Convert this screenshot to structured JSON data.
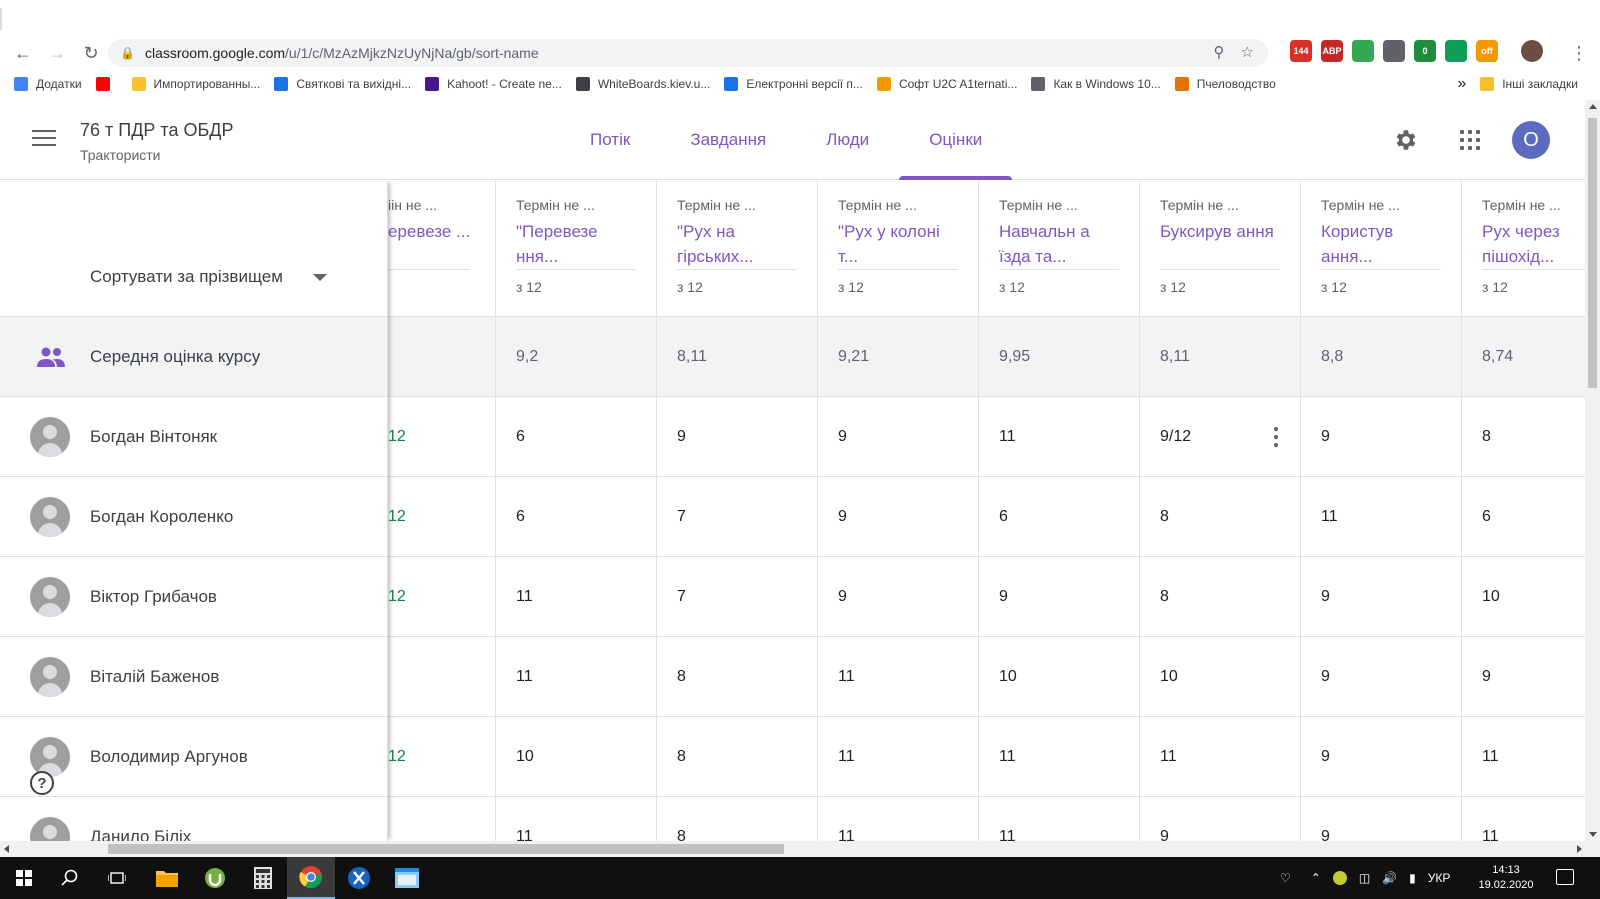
{
  "browser": {
    "url_host": "classroom.google.com",
    "url_path": "/u/1/c/MzAzMjkzNzUyNjNa/gb/sort-name",
    "extensions": [
      {
        "name": "calendar-ext-icon",
        "badge": "144",
        "color": "#d93025"
      },
      {
        "name": "adblock-icon",
        "badge": "ABP",
        "color": "#c62828"
      },
      {
        "name": "home-ext-icon",
        "badge": "",
        "color": "#34a853"
      },
      {
        "name": "window-ext-icon",
        "badge": "",
        "color": "#5f6368"
      },
      {
        "name": "shield-ext-icon",
        "badge": "0",
        "color": "#1e8e3e"
      },
      {
        "name": "display-ext-icon",
        "badge": "",
        "color": "#0f9d58"
      },
      {
        "name": "off-ext-icon",
        "badge": "off",
        "color": "#f29900"
      },
      {
        "name": "profile-avatar-icon",
        "badge": "",
        "color": "#6d4c41"
      }
    ],
    "bookmarks": [
      {
        "label": "Додатки",
        "icon": "apps-grid-icon",
        "color": "#4285f4"
      },
      {
        "label": "",
        "icon": "youtube-icon",
        "color": "#ff0000"
      },
      {
        "label": "Импортированны...",
        "icon": "folder-icon",
        "color": "#fbc02d"
      },
      {
        "label": "Святкові та вихідні...",
        "icon": "circle-icon",
        "color": "#1a73e8"
      },
      {
        "label": "Kahoot! - Create ne...",
        "icon": "kahoot-icon",
        "color": "#46178f"
      },
      {
        "label": "WhiteBoards.kiev.u...",
        "icon": "globe-icon",
        "color": "#3c4043"
      },
      {
        "label": "Електронні версії п...",
        "icon": "book-icon",
        "color": "#1a73e8"
      },
      {
        "label": "Софт U2C A1ternati...",
        "icon": "soft-icon",
        "color": "#f29900"
      },
      {
        "label": "Как в Windows 10...",
        "icon": "bird-icon",
        "color": "#5f6368"
      },
      {
        "label": "Пчеловодство",
        "icon": "bee-icon",
        "color": "#e37400"
      }
    ],
    "bookmarks_more": "»",
    "bookmarks_other": "Інші закладки"
  },
  "header": {
    "title": "76 т ПДР та ОБДР",
    "subtitle": "Трактористи",
    "tabs": [
      "Потік",
      "Завдання",
      "Люди",
      "Оцінки"
    ],
    "active_tab": "Оцінки",
    "account_initial": "О",
    "accent": "#7e57c2"
  },
  "gradebook": {
    "sort_label": "Сортувати за прізвищем",
    "average_label": "Середня оцінка курсу",
    "assignments": [
      {
        "due": "іін не ...",
        "title": "еревезе ...",
        "max": ""
      },
      {
        "due": "Термін не ...",
        "title": "\"Перевезе ння...",
        "max": "з 12"
      },
      {
        "due": "Термін не ...",
        "title": "\"Рух на гірських...",
        "max": "з 12"
      },
      {
        "due": "Термін не ...",
        "title": "\"Рух у колоні т...",
        "max": "з 12"
      },
      {
        "due": "Термін не ...",
        "title": "Навчальн а їзда та...",
        "max": "з 12"
      },
      {
        "due": "Термін не ...",
        "title": "Буксирув ання",
        "max": "з 12"
      },
      {
        "due": "Термін не ...",
        "title": "Користув ання...",
        "max": "з 12"
      },
      {
        "due": "Термін не ...",
        "title": "Рух через пішохід...",
        "max": "з 12"
      }
    ],
    "averages": [
      "",
      "9,2",
      "8,11",
      "9,21",
      "9,95",
      "8,11",
      "8,8",
      "8,74"
    ],
    "students": [
      {
        "name": "Богдан Вінтоняк",
        "grades": [
          "12",
          "6",
          "9",
          "9",
          "11",
          "9/12",
          "9",
          "8"
        ]
      },
      {
        "name": "Богдан Короленко",
        "grades": [
          "12",
          "6",
          "7",
          "9",
          "6",
          "8",
          "11",
          "6"
        ]
      },
      {
        "name": "Віктор Грибачов",
        "grades": [
          "12",
          "11",
          "7",
          "9",
          "9",
          "8",
          "9",
          "10"
        ]
      },
      {
        "name": "Віталій Баженов",
        "grades": [
          "",
          "11",
          "8",
          "11",
          "10",
          "10",
          "9",
          "9"
        ]
      },
      {
        "name": "Володимир Аргунов",
        "grades": [
          "12",
          "10",
          "8",
          "11",
          "11",
          "11",
          "9",
          "11"
        ]
      },
      {
        "name": "Данило Біліх",
        "grades": [
          "",
          "11",
          "8",
          "11",
          "11",
          "9",
          "9",
          "11"
        ]
      }
    ]
  },
  "taskbar": {
    "language": "УКР",
    "time": "14:13",
    "date": "19.02.2020"
  }
}
